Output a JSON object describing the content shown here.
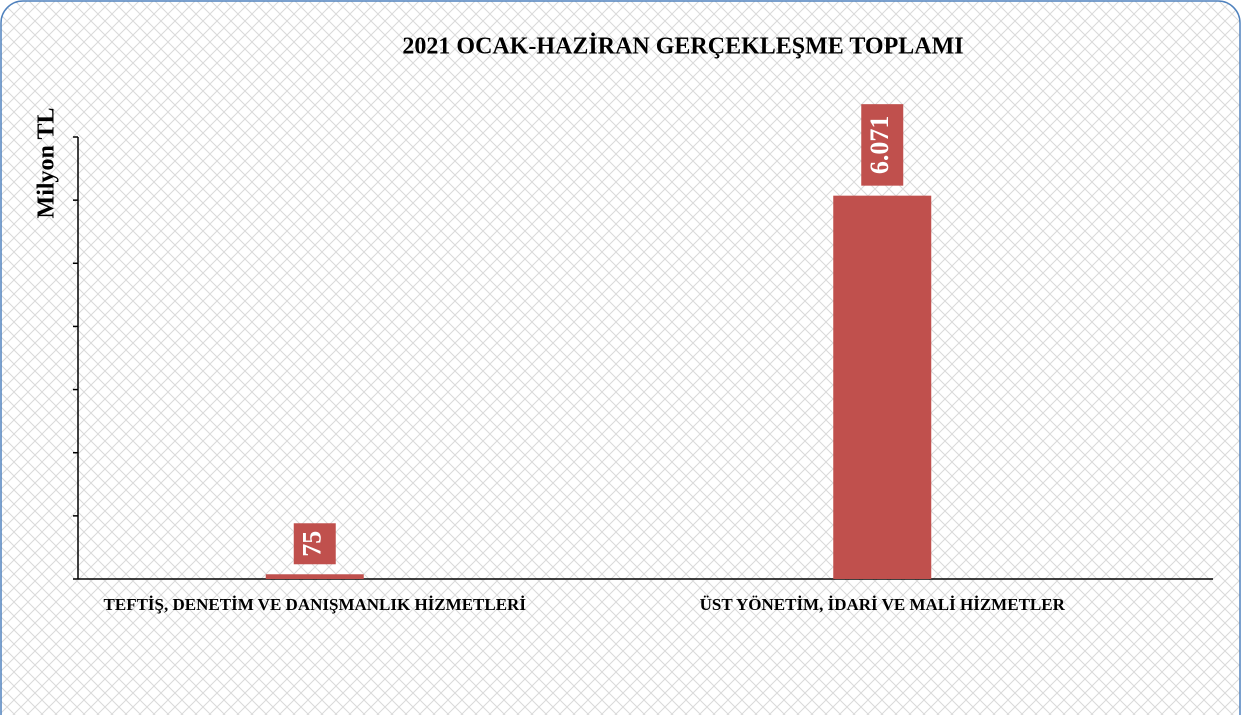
{
  "chart_data": {
    "type": "bar",
    "title": "2021 OCAK-HAZİRAN GERÇEKLEŞME TOPLAMI",
    "y_label": "Milyon TL",
    "categories": [
      "TEFTİŞ, DENETİM VE DANIŞMANLIK HİZMETLERİ",
      "ÜST YÖNETİM, İDARİ VE MALİ HİZMETLER"
    ],
    "values": [
      75,
      6071
    ],
    "value_labels": [
      "75",
      "6.071"
    ],
    "color": "#c0504d",
    "ylim": [
      0,
      7000
    ],
    "yticks": [
      0,
      1000,
      2000,
      3000,
      4000,
      5000,
      6000,
      7000
    ],
    "grid": false
  }
}
